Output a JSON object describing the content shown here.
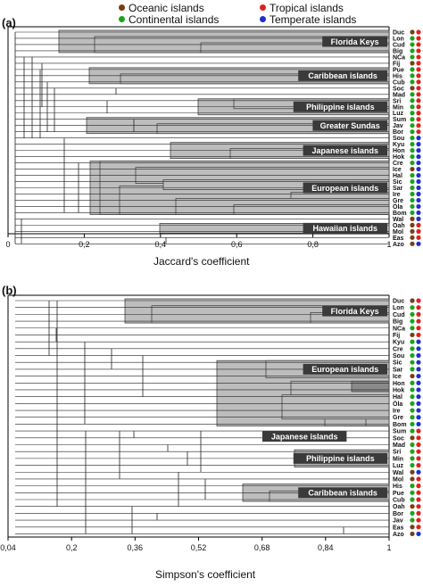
{
  "legend": [
    {
      "label": "Oceanic islands",
      "color": "#7a3b17"
    },
    {
      "label": "Tropical islands",
      "color": "#e02020"
    },
    {
      "label": "Continental islands",
      "color": "#1aa31a"
    },
    {
      "label": "Temperate islands",
      "color": "#1f2fd0"
    }
  ],
  "colors": {
    "oceanic": "#7a3b17",
    "continental": "#1aa31a",
    "tropical": "#e02020",
    "temperate": "#1f2fd0",
    "box": "#bdbdbd",
    "box_dark": "#8a8a8a",
    "label_bg": "#3a3a3a"
  },
  "panel_a": {
    "label": "(a)",
    "axis_title": "Jaccard's coefficient",
    "ticks": [
      "0",
      "0,2",
      "0,4",
      "0,6",
      "0,8",
      "1"
    ],
    "tick_values": [
      0,
      0.2,
      0.4,
      0.6,
      0.8,
      1
    ],
    "islands": [
      {
        "code": "Duc",
        "type": "oceanic",
        "climate": "tropical"
      },
      {
        "code": "Lon",
        "type": "continental",
        "climate": "tropical"
      },
      {
        "code": "Cud",
        "type": "continental",
        "climate": "tropical"
      },
      {
        "code": "Big",
        "type": "continental",
        "climate": "tropical"
      },
      {
        "code": "NCa",
        "type": "continental",
        "climate": "tropical"
      },
      {
        "code": "Fij",
        "type": "oceanic",
        "climate": "tropical"
      },
      {
        "code": "Pue",
        "type": "continental",
        "climate": "tropical"
      },
      {
        "code": "His",
        "type": "continental",
        "climate": "tropical"
      },
      {
        "code": "Cub",
        "type": "continental",
        "climate": "tropical"
      },
      {
        "code": "Soc",
        "type": "oceanic",
        "climate": "tropical"
      },
      {
        "code": "Mad",
        "type": "continental",
        "climate": "tropical"
      },
      {
        "code": "Sri",
        "type": "continental",
        "climate": "tropical"
      },
      {
        "code": "Min",
        "type": "continental",
        "climate": "tropical"
      },
      {
        "code": "Luz",
        "type": "continental",
        "climate": "tropical"
      },
      {
        "code": "Sum",
        "type": "continental",
        "climate": "tropical"
      },
      {
        "code": "Jav",
        "type": "continental",
        "climate": "tropical"
      },
      {
        "code": "Bor",
        "type": "continental",
        "climate": "tropical"
      },
      {
        "code": "Sou",
        "type": "continental",
        "climate": "temperate"
      },
      {
        "code": "Kyu",
        "type": "continental",
        "climate": "temperate"
      },
      {
        "code": "Hon",
        "type": "continental",
        "climate": "temperate"
      },
      {
        "code": "Hok",
        "type": "continental",
        "climate": "temperate"
      },
      {
        "code": "Cre",
        "type": "continental",
        "climate": "temperate"
      },
      {
        "code": "Ice",
        "type": "oceanic",
        "climate": "temperate"
      },
      {
        "code": "Hal",
        "type": "continental",
        "climate": "temperate"
      },
      {
        "code": "Sic",
        "type": "continental",
        "climate": "temperate"
      },
      {
        "code": "Sar",
        "type": "continental",
        "climate": "temperate"
      },
      {
        "code": "Ire",
        "type": "continental",
        "climate": "temperate"
      },
      {
        "code": "Gre",
        "type": "continental",
        "climate": "temperate"
      },
      {
        "code": "Öla",
        "type": "continental",
        "climate": "temperate"
      },
      {
        "code": "Bom",
        "type": "continental",
        "climate": "temperate"
      },
      {
        "code": "Wal",
        "type": "oceanic",
        "climate": "temperate"
      },
      {
        "code": "Oah",
        "type": "oceanic",
        "climate": "tropical"
      },
      {
        "code": "Mol",
        "type": "oceanic",
        "climate": "tropical"
      },
      {
        "code": "Eas",
        "type": "oceanic",
        "climate": "tropical"
      },
      {
        "code": "Azo",
        "type": "oceanic",
        "climate": "temperate"
      }
    ],
    "groups": [
      {
        "name": "Florida Keys",
        "from": 0,
        "to": 3
      },
      {
        "name": "Caribbean islands",
        "from": 6,
        "to": 8
      },
      {
        "name": "Philippine islands",
        "from": 11,
        "to": 13
      },
      {
        "name": "Greater Sundas",
        "from": 14,
        "to": 16
      },
      {
        "name": "Japanese islands",
        "from": 18,
        "to": 20
      },
      {
        "name": "European islands",
        "from": 21,
        "to": 29
      },
      {
        "name": "Hawaiian islands",
        "from": 31,
        "to": 32
      }
    ]
  },
  "panel_b": {
    "label": "(b)",
    "axis_title": "Simpson's coefficient",
    "ticks": [
      "0,04",
      "0,2",
      "0,36",
      "0,52",
      "0,68",
      "0,84",
      "1"
    ],
    "tick_values": [
      0.04,
      0.2,
      0.36,
      0.52,
      0.68,
      0.84,
      1
    ],
    "islands": [
      {
        "code": "Duc",
        "type": "oceanic",
        "climate": "tropical"
      },
      {
        "code": "Lon",
        "type": "continental",
        "climate": "tropical"
      },
      {
        "code": "Cud",
        "type": "continental",
        "climate": "tropical"
      },
      {
        "code": "Big",
        "type": "continental",
        "climate": "tropical"
      },
      {
        "code": "NCa",
        "type": "continental",
        "climate": "tropical"
      },
      {
        "code": "Fij",
        "type": "oceanic",
        "climate": "tropical"
      },
      {
        "code": "Kyu",
        "type": "continental",
        "climate": "temperate"
      },
      {
        "code": "Cre",
        "type": "continental",
        "climate": "temperate"
      },
      {
        "code": "Sou",
        "type": "continental",
        "climate": "temperate"
      },
      {
        "code": "Sic",
        "type": "continental",
        "climate": "temperate"
      },
      {
        "code": "Sar",
        "type": "continental",
        "climate": "temperate"
      },
      {
        "code": "Ice",
        "type": "oceanic",
        "climate": "temperate"
      },
      {
        "code": "Hon",
        "type": "continental",
        "climate": "temperate"
      },
      {
        "code": "Hok",
        "type": "continental",
        "climate": "temperate"
      },
      {
        "code": "Hal",
        "type": "continental",
        "climate": "temperate"
      },
      {
        "code": "Öla",
        "type": "continental",
        "climate": "temperate"
      },
      {
        "code": "Ire",
        "type": "continental",
        "climate": "temperate"
      },
      {
        "code": "Gre",
        "type": "continental",
        "climate": "temperate"
      },
      {
        "code": "Bom",
        "type": "continental",
        "climate": "temperate"
      },
      {
        "code": "Sum",
        "type": "continental",
        "climate": "tropical"
      },
      {
        "code": "Soc",
        "type": "oceanic",
        "climate": "tropical"
      },
      {
        "code": "Mad",
        "type": "continental",
        "climate": "tropical"
      },
      {
        "code": "Sri",
        "type": "continental",
        "climate": "tropical"
      },
      {
        "code": "Min",
        "type": "continental",
        "climate": "tropical"
      },
      {
        "code": "Luz",
        "type": "continental",
        "climate": "tropical"
      },
      {
        "code": "Wal",
        "type": "oceanic",
        "climate": "temperate"
      },
      {
        "code": "Mol",
        "type": "oceanic",
        "climate": "tropical"
      },
      {
        "code": "His",
        "type": "continental",
        "climate": "tropical"
      },
      {
        "code": "Pue",
        "type": "continental",
        "climate": "tropical"
      },
      {
        "code": "Cub",
        "type": "continental",
        "climate": "tropical"
      },
      {
        "code": "Oah",
        "type": "oceanic",
        "climate": "tropical"
      },
      {
        "code": "Bor",
        "type": "continental",
        "climate": "tropical"
      },
      {
        "code": "Jav",
        "type": "continental",
        "climate": "tropical"
      },
      {
        "code": "Eas",
        "type": "oceanic",
        "climate": "tropical"
      },
      {
        "code": "Azo",
        "type": "oceanic",
        "climate": "temperate"
      }
    ],
    "groups": [
      {
        "name": "Florida Keys",
        "from": 0,
        "to": 3
      },
      {
        "name": "European islands",
        "from": 9,
        "to": 18
      },
      {
        "name": "Japanese islands",
        "from": 12,
        "to": 14
      },
      {
        "name": "Philippine islands",
        "from": 22,
        "to": 24
      },
      {
        "name": "Caribbean islands",
        "from": 27,
        "to": 29
      }
    ]
  }
}
